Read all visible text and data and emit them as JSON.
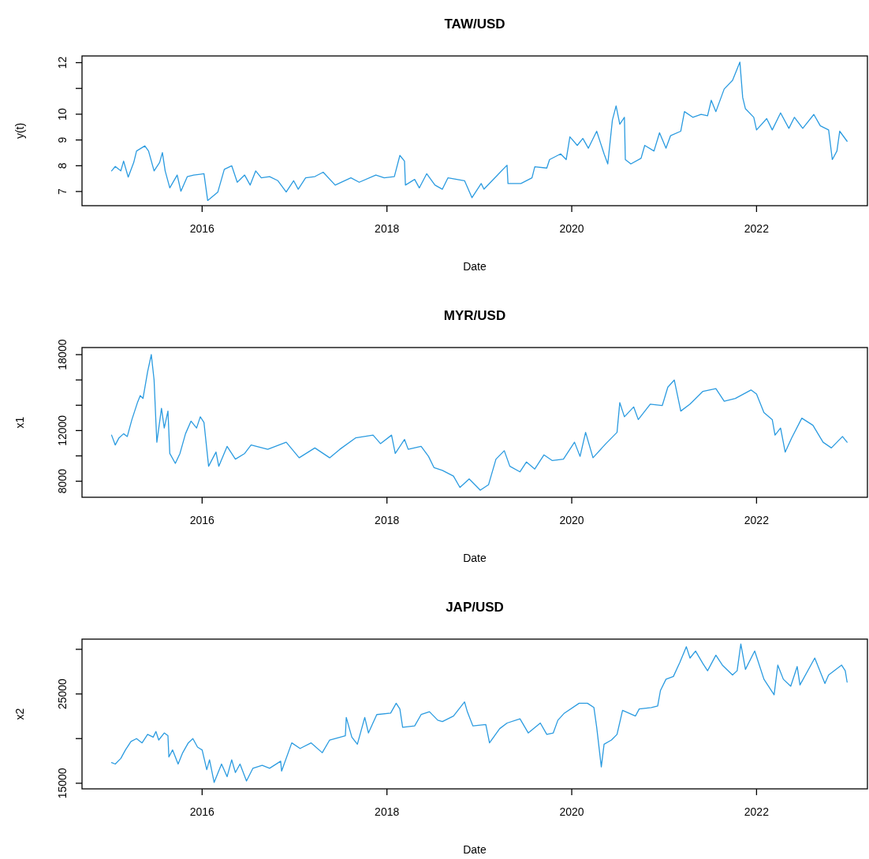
{
  "chart_data": [
    {
      "type": "line",
      "title": "TAW/USD",
      "xlabel": "Date",
      "ylabel": "y(t)",
      "color": "#2b9be0",
      "xlim": [
        2014.7,
        2023.2
      ],
      "xticks": [
        2016,
        2018,
        2020,
        2022
      ],
      "ylim": [
        6.45,
        12.26
      ],
      "yticks": [
        7,
        8,
        9,
        10,
        {
          "value": 11,
          "label": null
        },
        12
      ],
      "x": [
        2015.02,
        2015.06,
        2015.12,
        2015.15,
        2015.2,
        2015.26,
        2015.29,
        2015.38,
        2015.42,
        2015.48,
        2015.54,
        2015.57,
        2015.6,
        2015.65,
        2015.73,
        2015.77,
        2015.84,
        2015.91,
        2016.02,
        2016.06,
        2016.17,
        2016.24,
        2016.32,
        2016.38,
        2016.46,
        2016.52,
        2016.58,
        2016.64,
        2016.73,
        2016.82,
        2016.91,
        2016.99,
        2017.04,
        2017.12,
        2017.22,
        2017.31,
        2017.44,
        2017.61,
        2017.7,
        2017.88,
        2017.97,
        2018.08,
        2018.14,
        2018.19,
        2018.2,
        2018.3,
        2018.35,
        2018.43,
        2018.52,
        2018.6,
        2018.66,
        2018.84,
        2018.92,
        2019.02,
        2019.05,
        2019.21,
        2019.3,
        2019.31,
        2019.45,
        2019.57,
        2019.6,
        2019.73,
        2019.76,
        2019.88,
        2019.94,
        2019.98,
        2020.06,
        2020.12,
        2020.18,
        2020.27,
        2020.35,
        2020.39,
        2020.44,
        2020.48,
        2020.52,
        2020.57,
        2020.58,
        2020.64,
        2020.75,
        2020.79,
        2020.89,
        2020.95,
        2021.02,
        2021.07,
        2021.18,
        2021.22,
        2021.31,
        2021.4,
        2021.47,
        2021.51,
        2021.56,
        2021.65,
        2021.74,
        2021.82,
        2021.85,
        2021.88,
        2021.97,
        2022.0,
        2022.11,
        2022.17,
        2022.26,
        2022.35,
        2022.41,
        2022.5,
        2022.62,
        2022.69,
        2022.78,
        2022.82,
        2022.87,
        2022.9,
        2022.98
      ],
      "values": [
        7.8,
        7.97,
        7.8,
        8.18,
        7.56,
        8.13,
        8.57,
        8.77,
        8.57,
        7.8,
        8.13,
        8.51,
        7.8,
        7.14,
        7.64,
        7.01,
        7.58,
        7.64,
        7.69,
        6.65,
        6.98,
        7.86,
        8.0,
        7.36,
        7.64,
        7.25,
        7.8,
        7.53,
        7.58,
        7.42,
        6.98,
        7.42,
        7.09,
        7.53,
        7.58,
        7.75,
        7.25,
        7.53,
        7.36,
        7.64,
        7.53,
        7.58,
        8.4,
        8.18,
        7.25,
        7.47,
        7.14,
        7.69,
        7.25,
        7.09,
        7.53,
        7.42,
        6.76,
        7.31,
        7.09,
        7.69,
        8.02,
        7.31,
        7.31,
        7.53,
        7.96,
        7.91,
        8.24,
        8.46,
        8.24,
        9.12,
        8.79,
        9.06,
        8.68,
        9.34,
        8.46,
        8.07,
        9.77,
        10.32,
        9.61,
        9.88,
        8.24,
        8.07,
        8.29,
        8.79,
        8.57,
        9.28,
        8.68,
        9.17,
        9.34,
        10.1,
        9.88,
        9.99,
        9.94,
        10.54,
        10.1,
        10.98,
        11.31,
        12.02,
        10.65,
        10.21,
        9.88,
        9.39,
        9.83,
        9.39,
        10.05,
        9.45,
        9.88,
        9.45,
        9.99,
        9.55,
        9.39,
        8.24,
        8.57,
        9.34,
        8.95
      ]
    },
    {
      "type": "line",
      "title": "MYR/USD",
      "xlabel": "Date",
      "ylabel": "x1",
      "color": "#2b9be0",
      "xlim": [
        2014.7,
        2023.2
      ],
      "xticks": [
        2016,
        2018,
        2020,
        2022
      ],
      "ylim": [
        6730,
        18560
      ],
      "yticks": [
        8000,
        {
          "value": 10000,
          "label": null
        },
        12000,
        {
          "value": 14000,
          "label": null
        },
        {
          "value": 16000,
          "label": null
        },
        18000
      ],
      "x": [
        2015.02,
        2015.06,
        2015.1,
        2015.15,
        2015.19,
        2015.24,
        2015.3,
        2015.33,
        2015.36,
        2015.41,
        2015.45,
        2015.48,
        2015.5,
        2015.51,
        2015.56,
        2015.59,
        2015.63,
        2015.65,
        2015.71,
        2015.76,
        2015.82,
        2015.88,
        2015.94,
        2015.98,
        2016.02,
        2016.07,
        2016.15,
        2016.18,
        2016.27,
        2016.36,
        2016.46,
        2016.53,
        2016.71,
        2016.91,
        2017.05,
        2017.22,
        2017.38,
        2017.49,
        2017.66,
        2017.85,
        2017.93,
        2018.05,
        2018.09,
        2018.19,
        2018.23,
        2018.37,
        2018.45,
        2018.51,
        2018.6,
        2018.72,
        2018.79,
        2018.89,
        2019.01,
        2019.1,
        2019.18,
        2019.27,
        2019.33,
        2019.44,
        2019.51,
        2019.6,
        2019.7,
        2019.79,
        2019.91,
        2020.03,
        2020.09,
        2020.15,
        2020.23,
        2020.37,
        2020.49,
        2020.52,
        2020.57,
        2020.67,
        2020.72,
        2020.85,
        2020.98,
        2021.04,
        2021.11,
        2021.18,
        2021.28,
        2021.42,
        2021.56,
        2021.65,
        2021.77,
        2021.94,
        2022.0,
        2022.08,
        2022.17,
        2022.2,
        2022.26,
        2022.31,
        2022.38,
        2022.49,
        2022.61,
        2022.72,
        2022.81,
        2022.93,
        2022.98
      ],
      "values": [
        11640,
        10860,
        11420,
        11750,
        11530,
        12870,
        14210,
        14760,
        14540,
        16660,
        18000,
        15990,
        12640,
        11080,
        13760,
        12200,
        13540,
        10190,
        9410,
        10190,
        11750,
        12750,
        12200,
        13090,
        12640,
        9180,
        10300,
        9180,
        10750,
        9740,
        10190,
        10860,
        10520,
        11080,
        9850,
        10630,
        9850,
        10520,
        11420,
        11640,
        10970,
        11640,
        10190,
        11300,
        10520,
        10750,
        9960,
        9070,
        8850,
        8400,
        7510,
        8180,
        7290,
        7730,
        9740,
        10410,
        9180,
        8740,
        9520,
        8960,
        10080,
        9630,
        9740,
        11080,
        9960,
        11860,
        9850,
        10970,
        11860,
        14210,
        13090,
        13870,
        12870,
        14090,
        13980,
        15430,
        15990,
        13540,
        14090,
        15100,
        15320,
        14320,
        14540,
        15210,
        14880,
        13430,
        12870,
        11640,
        12200,
        10300,
        11420,
        12980,
        12420,
        11080,
        10630,
        11530,
        11080
      ]
    },
    {
      "type": "line",
      "title": "JAP/USD",
      "xlabel": "Date",
      "ylabel": "x2",
      "color": "#2b9be0",
      "xlim": [
        2014.7,
        2023.2
      ],
      "xticks": [
        2016,
        2018,
        2020,
        2022
      ],
      "ylim": [
        14370,
        31140
      ],
      "yticks": [
        15000,
        {
          "value": 20000,
          "label": null
        },
        25000,
        {
          "value": 30000,
          "label": null
        }
      ],
      "x": [
        2015.02,
        2015.06,
        2015.12,
        2015.17,
        2015.23,
        2015.29,
        2015.35,
        2015.41,
        2015.47,
        2015.5,
        2015.53,
        2015.59,
        2015.63,
        2015.64,
        2015.68,
        2015.74,
        2015.79,
        2015.85,
        2015.9,
        2015.95,
        2016.0,
        2016.05,
        2016.08,
        2016.13,
        2016.21,
        2016.27,
        2016.32,
        2016.36,
        2016.41,
        2016.48,
        2016.55,
        2016.65,
        2016.73,
        2016.85,
        2016.86,
        2016.97,
        2017.06,
        2017.18,
        2017.3,
        2017.38,
        2017.55,
        2017.56,
        2017.62,
        2017.68,
        2017.76,
        2017.8,
        2017.89,
        2018.04,
        2018.1,
        2018.14,
        2018.17,
        2018.3,
        2018.37,
        2018.46,
        2018.55,
        2018.6,
        2018.72,
        2018.84,
        2018.87,
        2018.93,
        2019.07,
        2019.11,
        2019.22,
        2019.3,
        2019.44,
        2019.53,
        2019.66,
        2019.73,
        2019.8,
        2019.85,
        2019.92,
        2020.08,
        2020.17,
        2020.24,
        2020.27,
        2020.32,
        2020.35,
        2020.43,
        2020.49,
        2020.55,
        2020.69,
        2020.73,
        2020.86,
        2020.93,
        2020.96,
        2021.02,
        2021.1,
        2021.17,
        2021.24,
        2021.28,
        2021.34,
        2021.42,
        2021.47,
        2021.56,
        2021.63,
        2021.74,
        2021.79,
        2021.83,
        2021.88,
        2021.98,
        2022.08,
        2022.19,
        2022.23,
        2022.29,
        2022.37,
        2022.44,
        2022.47,
        2022.63,
        2022.74,
        2022.78,
        2022.92,
        2022.96,
        2022.98
      ],
      "values": [
        17310,
        17150,
        17780,
        18730,
        19680,
        20000,
        19520,
        20470,
        20160,
        20790,
        19840,
        20630,
        20320,
        17940,
        18730,
        17150,
        18420,
        19520,
        20000,
        19050,
        18730,
        16520,
        17630,
        15090,
        17150,
        15730,
        17630,
        16200,
        17150,
        15250,
        16680,
        17000,
        16680,
        17470,
        16360,
        19520,
        18890,
        19520,
        18420,
        19840,
        20320,
        22370,
        20160,
        19370,
        22370,
        20630,
        22690,
        22850,
        23960,
        23320,
        21260,
        21420,
        22690,
        23010,
        22060,
        21900,
        22530,
        24110,
        23010,
        21420,
        21580,
        19520,
        21110,
        21740,
        22220,
        20630,
        21740,
        20470,
        20630,
        22060,
        22850,
        23960,
        23960,
        23480,
        21260,
        16830,
        19370,
        19840,
        20470,
        23160,
        22530,
        23320,
        23480,
        23640,
        25380,
        26650,
        26960,
        28540,
        30290,
        29020,
        29810,
        28390,
        27600,
        29340,
        28230,
        27120,
        27600,
        30600,
        27750,
        29810,
        26650,
        24900,
        28230,
        26650,
        25860,
        28070,
        26010,
        29020,
        26170,
        27120,
        28230,
        27600,
        26330
      ]
    }
  ]
}
